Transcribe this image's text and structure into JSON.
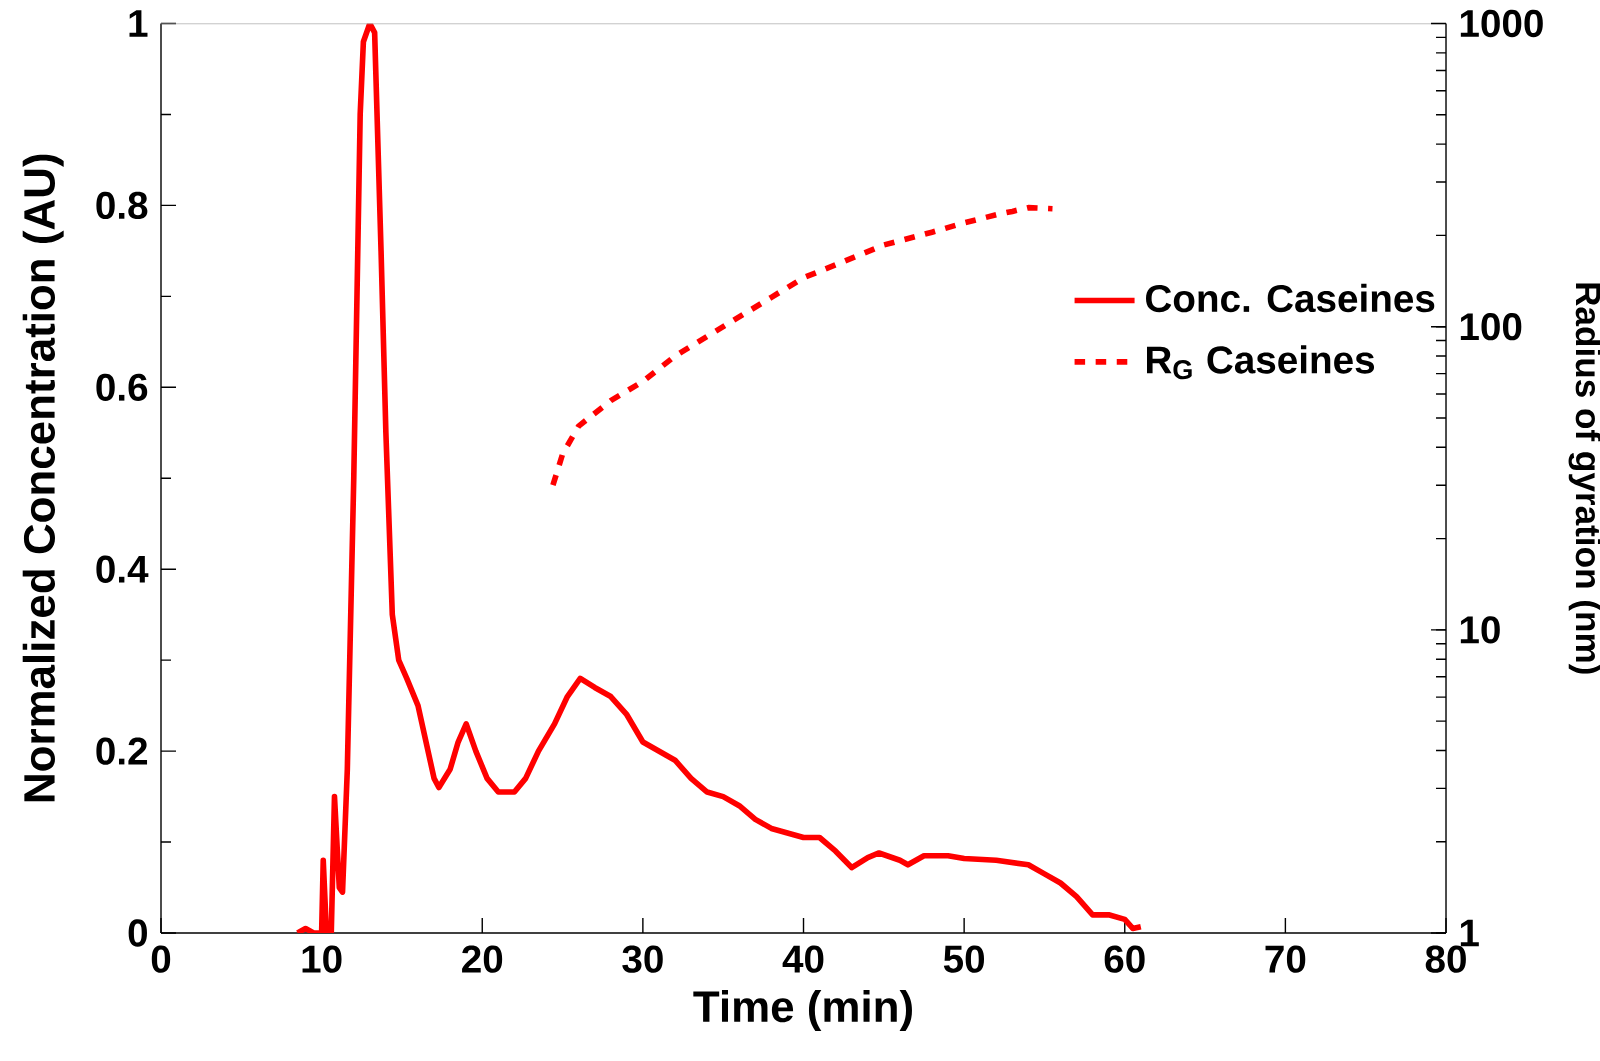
{
  "chart_data": {
    "type": "line",
    "xlabel": "Time (min)",
    "ylabel": "Normalized Concentration (AU)",
    "y2label": "Radius of gyration (nm)",
    "xlim": [
      0,
      80
    ],
    "xticks": [
      0,
      10,
      20,
      30,
      40,
      50,
      60,
      70,
      80
    ],
    "ylim": [
      0,
      1
    ],
    "yticks": [
      0,
      0.2,
      0.4,
      0.6,
      0.8,
      1
    ],
    "y2lim": [
      1,
      1000
    ],
    "y2ticks": [
      1,
      10,
      100,
      1000
    ],
    "log": "y2",
    "legend": "right",
    "series": [
      {
        "name": "Conc. Caseines",
        "color": "#ff0000",
        "line_style": "solid",
        "x": [
          8.5,
          9,
          9.5,
          10,
          10.1,
          10.3,
          10.6,
          10.8,
          11.1,
          11.3,
          11.6,
          12,
          12.4,
          12.6,
          13,
          13.3,
          13.7,
          14,
          14.4,
          14.8,
          15.3,
          16,
          16.5,
          17,
          17.3,
          18,
          18.5,
          19,
          19.6,
          20.3,
          21,
          22,
          22.7,
          23.5,
          24.5,
          25.3,
          26.1,
          27,
          28,
          29,
          30,
          31,
          32,
          33,
          34,
          35,
          36,
          37,
          38,
          39,
          40,
          41,
          42,
          43,
          44,
          44.7,
          46,
          46.5,
          47.5,
          49,
          50,
          52,
          54,
          55,
          56,
          57,
          58,
          59,
          60,
          60.5,
          61
        ],
        "values": [
          0,
          0.005,
          0,
          0,
          0.08,
          0,
          0,
          0.15,
          0.05,
          0.045,
          0.18,
          0.5,
          0.9,
          0.98,
          1.0,
          0.99,
          0.75,
          0.55,
          0.35,
          0.3,
          0.28,
          0.25,
          0.21,
          0.17,
          0.16,
          0.18,
          0.21,
          0.23,
          0.2,
          0.17,
          0.155,
          0.155,
          0.17,
          0.2,
          0.23,
          0.26,
          0.28,
          0.27,
          0.26,
          0.24,
          0.21,
          0.2,
          0.19,
          0.17,
          0.155,
          0.15,
          0.14,
          0.125,
          0.115,
          0.11,
          0.105,
          0.105,
          0.09,
          0.072,
          0.083,
          0.088,
          0.08,
          0.075,
          0.085,
          0.085,
          0.082,
          0.08,
          0.075,
          0.065,
          0.055,
          0.04,
          0.02,
          0.02,
          0.015,
          0.005,
          0.007
        ]
      },
      {
        "name": "R$_{G}$ Caseines",
        "color": "#ff0000",
        "line_style": "dashed",
        "axis": "y2",
        "x": [
          24.4,
          25,
          26,
          28,
          30,
          32,
          35,
          38,
          40,
          42,
          45,
          48,
          50,
          52,
          53,
          54,
          55.5
        ],
        "values": [
          30,
          38,
          47,
          57,
          66,
          80,
          100,
          125,
          145,
          160,
          186,
          205,
          220,
          234,
          240,
          247,
          245
        ]
      }
    ]
  }
}
